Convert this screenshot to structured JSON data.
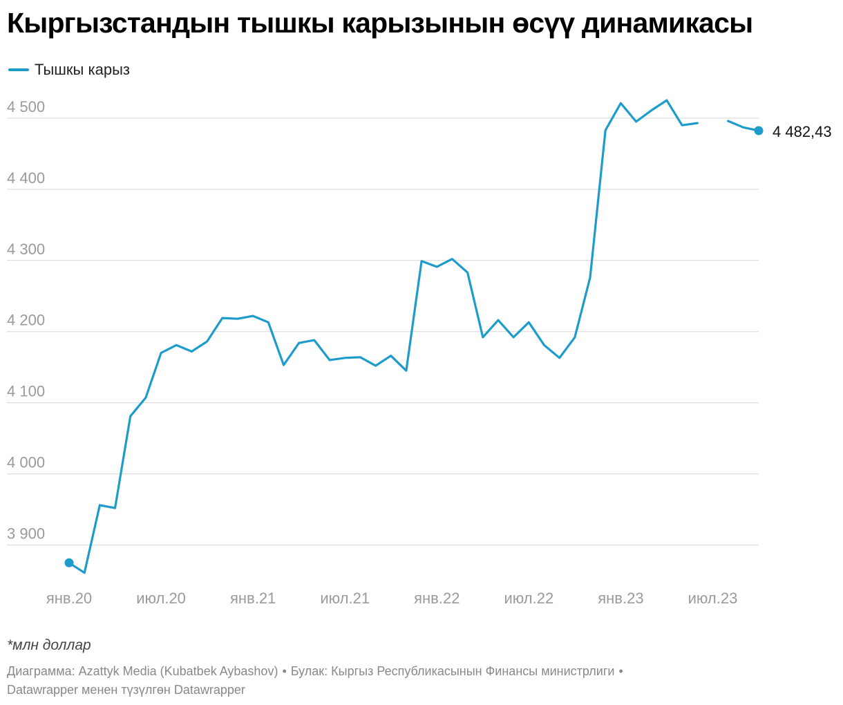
{
  "title": "Кыргызстандын тышкы карызынын өсүү динамикасы",
  "note": "*млн доллар",
  "credits": {
    "chart_by": "Диаграмма: Azattyk Media (Kubatbek Aybashov)",
    "source": "Булак: Кыргыз Республикасынын Финансы министрлиги",
    "made_with": "Datawrapper менен түзүлгөн Datawrapper"
  },
  "colors": {
    "line": "#1d9ccb",
    "grid": "#dddddd",
    "tick": "#9a9a9a",
    "label": "#111111"
  },
  "chart_data": {
    "type": "line",
    "title": "Кыргызстандын тышкы карызынын өсүү динамикасы",
    "xlabel": "",
    "ylabel": "",
    "ylim": [
      3850,
      4530
    ],
    "grid": true,
    "legend_position": "top-left",
    "y_ticks": [
      {
        "value": 3900,
        "label": "3 900"
      },
      {
        "value": 4000,
        "label": "4 000"
      },
      {
        "value": 4100,
        "label": "4 100"
      },
      {
        "value": 4200,
        "label": "4 200"
      },
      {
        "value": 4300,
        "label": "4 300"
      },
      {
        "value": 4400,
        "label": "4 400"
      },
      {
        "value": 4500,
        "label": "4 500"
      }
    ],
    "x_ticks": [
      {
        "month": "2020-01",
        "label": "янв.20"
      },
      {
        "month": "2020-07",
        "label": "июл.20"
      },
      {
        "month": "2021-01",
        "label": "янв.21"
      },
      {
        "month": "2021-07",
        "label": "июл.21"
      },
      {
        "month": "2022-01",
        "label": "янв.22"
      },
      {
        "month": "2022-07",
        "label": "июл.22"
      },
      {
        "month": "2023-01",
        "label": "янв.23"
      },
      {
        "month": "2023-07",
        "label": "июл.23"
      }
    ],
    "series": [
      {
        "name": "Тышкы карыз",
        "color": "#1d9ccb",
        "end_label": "4 482,43",
        "points": [
          {
            "month": "2020-01",
            "value": 3875
          },
          {
            "month": "2020-02",
            "value": 3861
          },
          {
            "month": "2020-03",
            "value": 3956
          },
          {
            "month": "2020-04",
            "value": 3952
          },
          {
            "month": "2020-05",
            "value": 4081
          },
          {
            "month": "2020-06",
            "value": 4107
          },
          {
            "month": "2020-07",
            "value": 4170
          },
          {
            "month": "2020-08",
            "value": 4181
          },
          {
            "month": "2020-09",
            "value": 4172
          },
          {
            "month": "2020-10",
            "value": 4186
          },
          {
            "month": "2020-11",
            "value": 4219
          },
          {
            "month": "2020-12",
            "value": 4218
          },
          {
            "month": "2021-01",
            "value": 4222
          },
          {
            "month": "2021-02",
            "value": 4213
          },
          {
            "month": "2021-03",
            "value": 4153
          },
          {
            "month": "2021-04",
            "value": 4184
          },
          {
            "month": "2021-05",
            "value": 4188
          },
          {
            "month": "2021-06",
            "value": 4160
          },
          {
            "month": "2021-07",
            "value": 4163
          },
          {
            "month": "2021-08",
            "value": 4164
          },
          {
            "month": "2021-09",
            "value": 4152
          },
          {
            "month": "2021-10",
            "value": 4166
          },
          {
            "month": "2021-11",
            "value": 4145
          },
          {
            "month": "2021-12",
            "value": 4299
          },
          {
            "month": "2022-01",
            "value": 4291
          },
          {
            "month": "2022-02",
            "value": 4302
          },
          {
            "month": "2022-03",
            "value": 4283
          },
          {
            "month": "2022-04",
            "value": 4192
          },
          {
            "month": "2022-05",
            "value": 4216
          },
          {
            "month": "2022-06",
            "value": 4192
          },
          {
            "month": "2022-07",
            "value": 4213
          },
          {
            "month": "2022-08",
            "value": 4181
          },
          {
            "month": "2022-09",
            "value": 4163
          },
          {
            "month": "2022-10",
            "value": 4192
          },
          {
            "month": "2022-11",
            "value": 4276
          },
          {
            "month": "2022-12",
            "value": 4483
          },
          {
            "month": "2023-01",
            "value": 4521
          },
          {
            "month": "2023-02",
            "value": 4495
          },
          {
            "month": "2023-03",
            "value": 4511
          },
          {
            "month": "2023-04",
            "value": 4525
          },
          {
            "month": "2023-05",
            "value": 4490
          },
          {
            "month": "2023-06",
            "value": 4493
          },
          {
            "month": "2023-07",
            "value": null
          },
          {
            "month": "2023-08",
            "value": 4496
          },
          {
            "month": "2023-09",
            "value": 4487
          },
          {
            "month": "2023-10",
            "value": 4482.43
          }
        ]
      }
    ]
  }
}
